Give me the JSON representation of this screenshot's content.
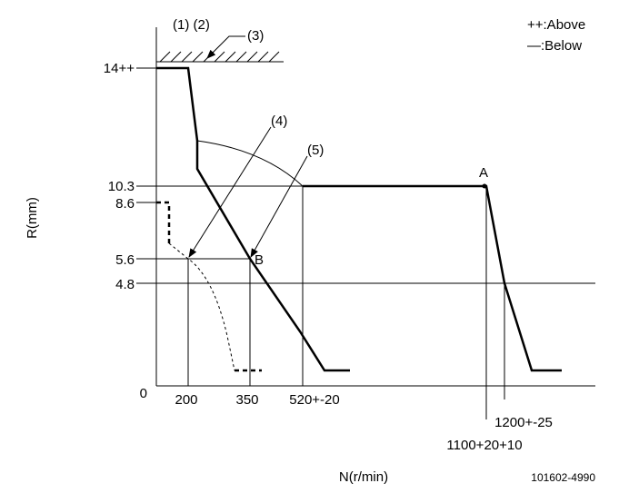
{
  "header": {
    "markers": "(1) (2)",
    "marker_3": "(3)",
    "legend_above": "++:Above",
    "legend_below": "—:Below"
  },
  "axes": {
    "y_label": "R(mm)",
    "x_label": "N(r/min)",
    "y_ticks": [
      "14++",
      "10.3",
      "8.6",
      "5.6",
      "4.8",
      "0"
    ],
    "x_ticks": [
      "200",
      "350",
      "520+-20",
      "1200+-25",
      "1100+20+10"
    ]
  },
  "callouts": {
    "c4": "(4)",
    "c5": "(5)",
    "point_a": "A",
    "point_b": "B"
  },
  "footer": {
    "code": "101602-4990"
  }
}
